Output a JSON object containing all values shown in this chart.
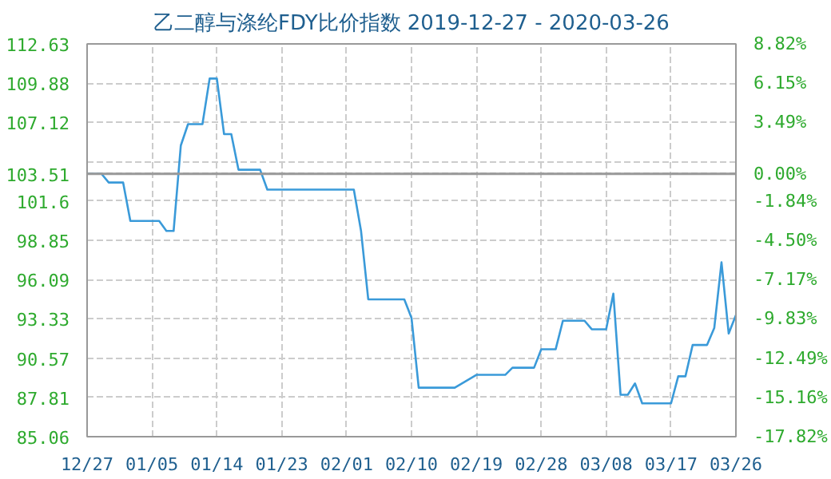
{
  "chart_data": {
    "type": "line",
    "title": "乙二醇与涤纶FDY比价指数 2019-12-27 - 2020-03-26",
    "x": [
      "2019-12-27",
      "2019-12-29",
      "2019-12-30",
      "2020-01-01",
      "2020-01-02",
      "2020-01-06",
      "2020-01-07",
      "2020-01-08",
      "2020-01-09",
      "2020-01-10",
      "2020-01-12",
      "2020-01-13",
      "2020-01-14",
      "2020-01-15",
      "2020-01-16",
      "2020-01-17",
      "2020-01-20",
      "2020-01-21",
      "2020-02-02",
      "2020-02-03",
      "2020-02-04",
      "2020-02-09",
      "2020-02-10",
      "2020-02-11",
      "2020-02-16",
      "2020-02-19",
      "2020-02-23",
      "2020-02-24",
      "2020-02-27",
      "2020-02-28",
      "2020-03-01",
      "2020-03-02",
      "2020-03-05",
      "2020-03-06",
      "2020-03-08",
      "2020-03-09",
      "2020-03-10",
      "2020-03-11",
      "2020-03-12",
      "2020-03-13",
      "2020-03-17",
      "2020-03-18",
      "2020-03-19",
      "2020-03-20",
      "2020-03-22",
      "2020-03-23",
      "2020-03-24",
      "2020-03-25",
      "2020-03-26"
    ],
    "series": [
      {
        "color": "#3a9ad9",
        "values": [
          103.51,
          103.51,
          102.9,
          102.9,
          100.2,
          100.2,
          99.5,
          99.5,
          105.5,
          107.0,
          107.0,
          110.2,
          110.2,
          106.3,
          106.3,
          103.8,
          103.8,
          102.4,
          102.4,
          99.5,
          94.7,
          94.7,
          93.4,
          88.5,
          88.5,
          89.4,
          89.4,
          89.9,
          89.9,
          91.2,
          91.2,
          93.2,
          93.2,
          92.6,
          92.6,
          95.1,
          88.0,
          88.0,
          88.8,
          87.4,
          87.4,
          89.3,
          89.3,
          91.5,
          91.5,
          92.7,
          97.3,
          92.3,
          93.6
        ]
      }
    ],
    "xlim": [
      "2019-12-27",
      "2020-03-26"
    ],
    "xticks": [
      {
        "value": "2019-12-27",
        "label": "12/27"
      },
      {
        "value": "2020-01-05",
        "label": "01/05"
      },
      {
        "value": "2020-01-14",
        "label": "01/14"
      },
      {
        "value": "2020-01-23",
        "label": "01/23"
      },
      {
        "value": "2020-02-01",
        "label": "02/01"
      },
      {
        "value": "2020-02-10",
        "label": "02/10"
      },
      {
        "value": "2020-02-19",
        "label": "02/19"
      },
      {
        "value": "2020-02-28",
        "label": "02/28"
      },
      {
        "value": "2020-03-08",
        "label": "03/08"
      },
      {
        "value": "2020-03-17",
        "label": "03/17"
      },
      {
        "value": "2020-03-26",
        "label": "03/26"
      }
    ],
    "ylim": [
      85.06,
      112.63
    ],
    "yticks": [
      85.06,
      87.81,
      90.57,
      93.33,
      96.09,
      98.85,
      101.6,
      103.51,
      {
        "value": 104.36,
        "label": null
      },
      107.12,
      109.88,
      112.63
    ],
    "y2lim": [
      -17.82,
      8.82
    ],
    "y2ticks": [
      {
        "value": -17.82,
        "label": "-17.82%"
      },
      {
        "value": -15.16,
        "label": "-15.16%"
      },
      {
        "value": -12.49,
        "label": "-12.49%"
      },
      {
        "value": -9.83,
        "label": "-9.83%"
      },
      {
        "value": -7.17,
        "label": "-7.17%"
      },
      {
        "value": -4.5,
        "label": "-4.50%"
      },
      {
        "value": -1.84,
        "label": "-1.84%"
      },
      {
        "value": 0.0,
        "label": "0.00%"
      },
      {
        "value": 3.49,
        "label": "3.49%"
      },
      {
        "value": 6.15,
        "label": "6.15%"
      },
      {
        "value": 8.82,
        "label": "8.82%"
      }
    ],
    "ref_lines": [
      {
        "axis": "y",
        "value": 103.51,
        "color": "#999999"
      }
    ],
    "grid": true,
    "line_style": "solid"
  }
}
